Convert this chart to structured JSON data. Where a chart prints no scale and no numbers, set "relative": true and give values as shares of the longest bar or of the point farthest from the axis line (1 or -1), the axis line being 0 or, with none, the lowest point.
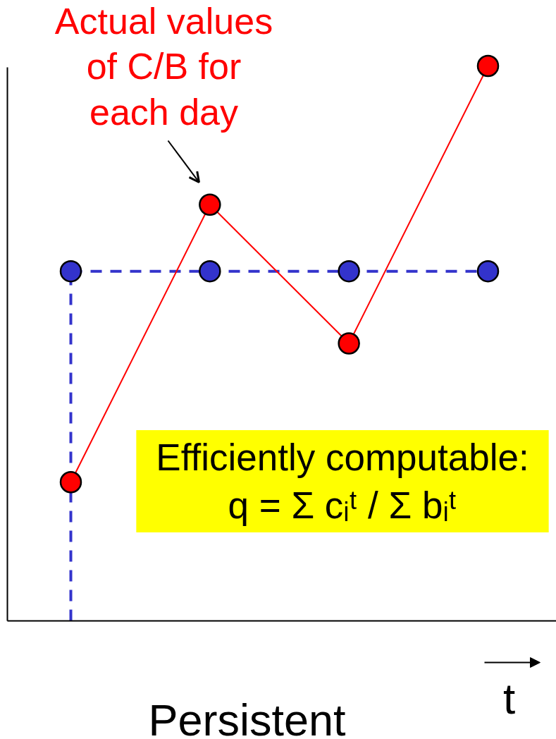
{
  "chart_data": {
    "type": "line",
    "title": "Persistent",
    "xlabel": "t",
    "categories": [
      null,
      null,
      null,
      null
    ],
    "relative": true,
    "marker": "circle",
    "series": [
      {
        "color": "#3333cc",
        "values": [
          0.63,
          0.63,
          0.63,
          0.63
        ],
        "line_style": "dashed"
      },
      {
        "color": "#ff0000",
        "values": [
          0.25,
          0.75,
          0.5,
          1
        ],
        "line_style": "solid"
      }
    ],
    "annotations": [
      "Actual values\nof C/B for\neach day",
      "Efficiently computable:\nq = Σ cᵢᵗ / Σ bᵢᵗ"
    ]
  }
}
